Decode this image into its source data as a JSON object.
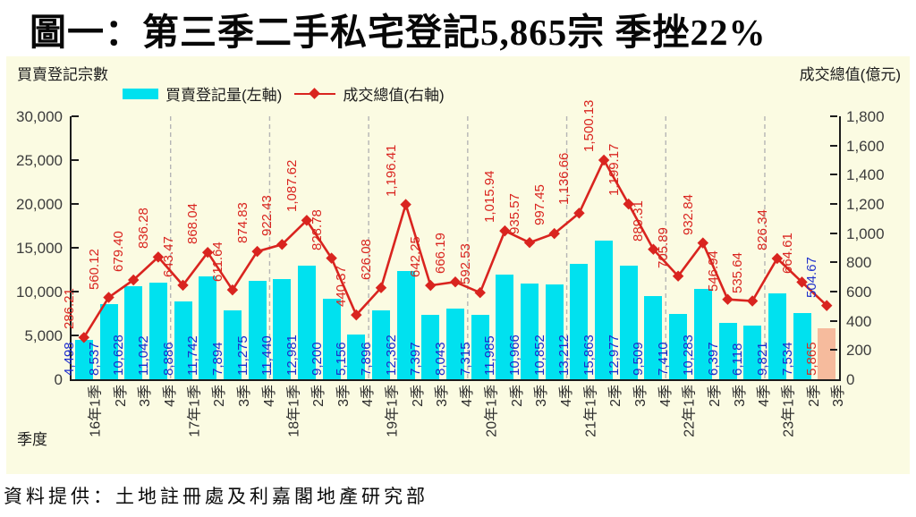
{
  "title": "圖一：第三季二手私宅登記5,865宗  季挫22%",
  "source": "資料提供：土地註冊處及利嘉閣地產研究部",
  "colors": {
    "panel_bg": "#fbfbe2",
    "bar": "#00e1ef",
    "bar_label": "#1b2acc",
    "line": "#d9241f",
    "line_label": "#d9241f",
    "highlight_bar": "#f6bb9d",
    "highlight_bar_label": "#d92a20",
    "highlight_line_label": "#2233cc",
    "gridline": "#b5b5b5",
    "axis": "#1c1c1c",
    "tick_text": "#3c3c3c"
  },
  "chart_data": {
    "type": "bar",
    "subtype": "bar+line dual axis",
    "title": "圖一：第三季二手私宅登記5,865宗  季挫22%",
    "x_axis_title": "季度",
    "categories": [
      "16年1季",
      "2季",
      "3季",
      "4季",
      "17年1季",
      "2季",
      "3季",
      "4季",
      "18年1季",
      "2季",
      "3季",
      "4季",
      "19年1季",
      "2季",
      "3季",
      "4季",
      "20年1季",
      "2季",
      "3季",
      "4季",
      "21年1季",
      "2季",
      "3季",
      "4季",
      "22年1季",
      "2季",
      "3季",
      "4季",
      "23年1季",
      "2季",
      "3季"
    ],
    "series": [
      {
        "name": "買賣登記量(左軸)",
        "type": "bar",
        "axis": "left",
        "values": [
          4498,
          8537,
          10628,
          11042,
          8886,
          11742,
          7894,
          11275,
          11440,
          12981,
          9200,
          5156,
          7896,
          12362,
          7397,
          8043,
          7315,
          11985,
          10966,
          10852,
          13212,
          15863,
          12977,
          9509,
          7410,
          10283,
          6397,
          6118,
          9821,
          7534,
          5865
        ]
      },
      {
        "name": "成交總值(右軸)",
        "type": "line",
        "axis": "right",
        "values": [
          286.21,
          560.12,
          679.4,
          836.28,
          643.47,
          868.04,
          611.64,
          874.83,
          922.43,
          1087.62,
          828.78,
          440.37,
          626.08,
          1196.41,
          642.25,
          666.19,
          592.53,
          1015.94,
          935.57,
          997.45,
          1136.66,
          1500.13,
          1199.17,
          889.31,
          705.89,
          932.84,
          546.94,
          535.64,
          826.34,
          664.61,
          504.67
        ]
      }
    ],
    "left_axis": {
      "title": "買賣登記宗數",
      "min": 0,
      "max": 30000,
      "step": 5000
    },
    "right_axis": {
      "title": "成交總值(億元)",
      "min": 0,
      "max": 1800,
      "step": 200
    },
    "grid": "vertical dashed lines at year boundaries",
    "legend_position": "top-left",
    "highlight": {
      "index": 30
    }
  }
}
